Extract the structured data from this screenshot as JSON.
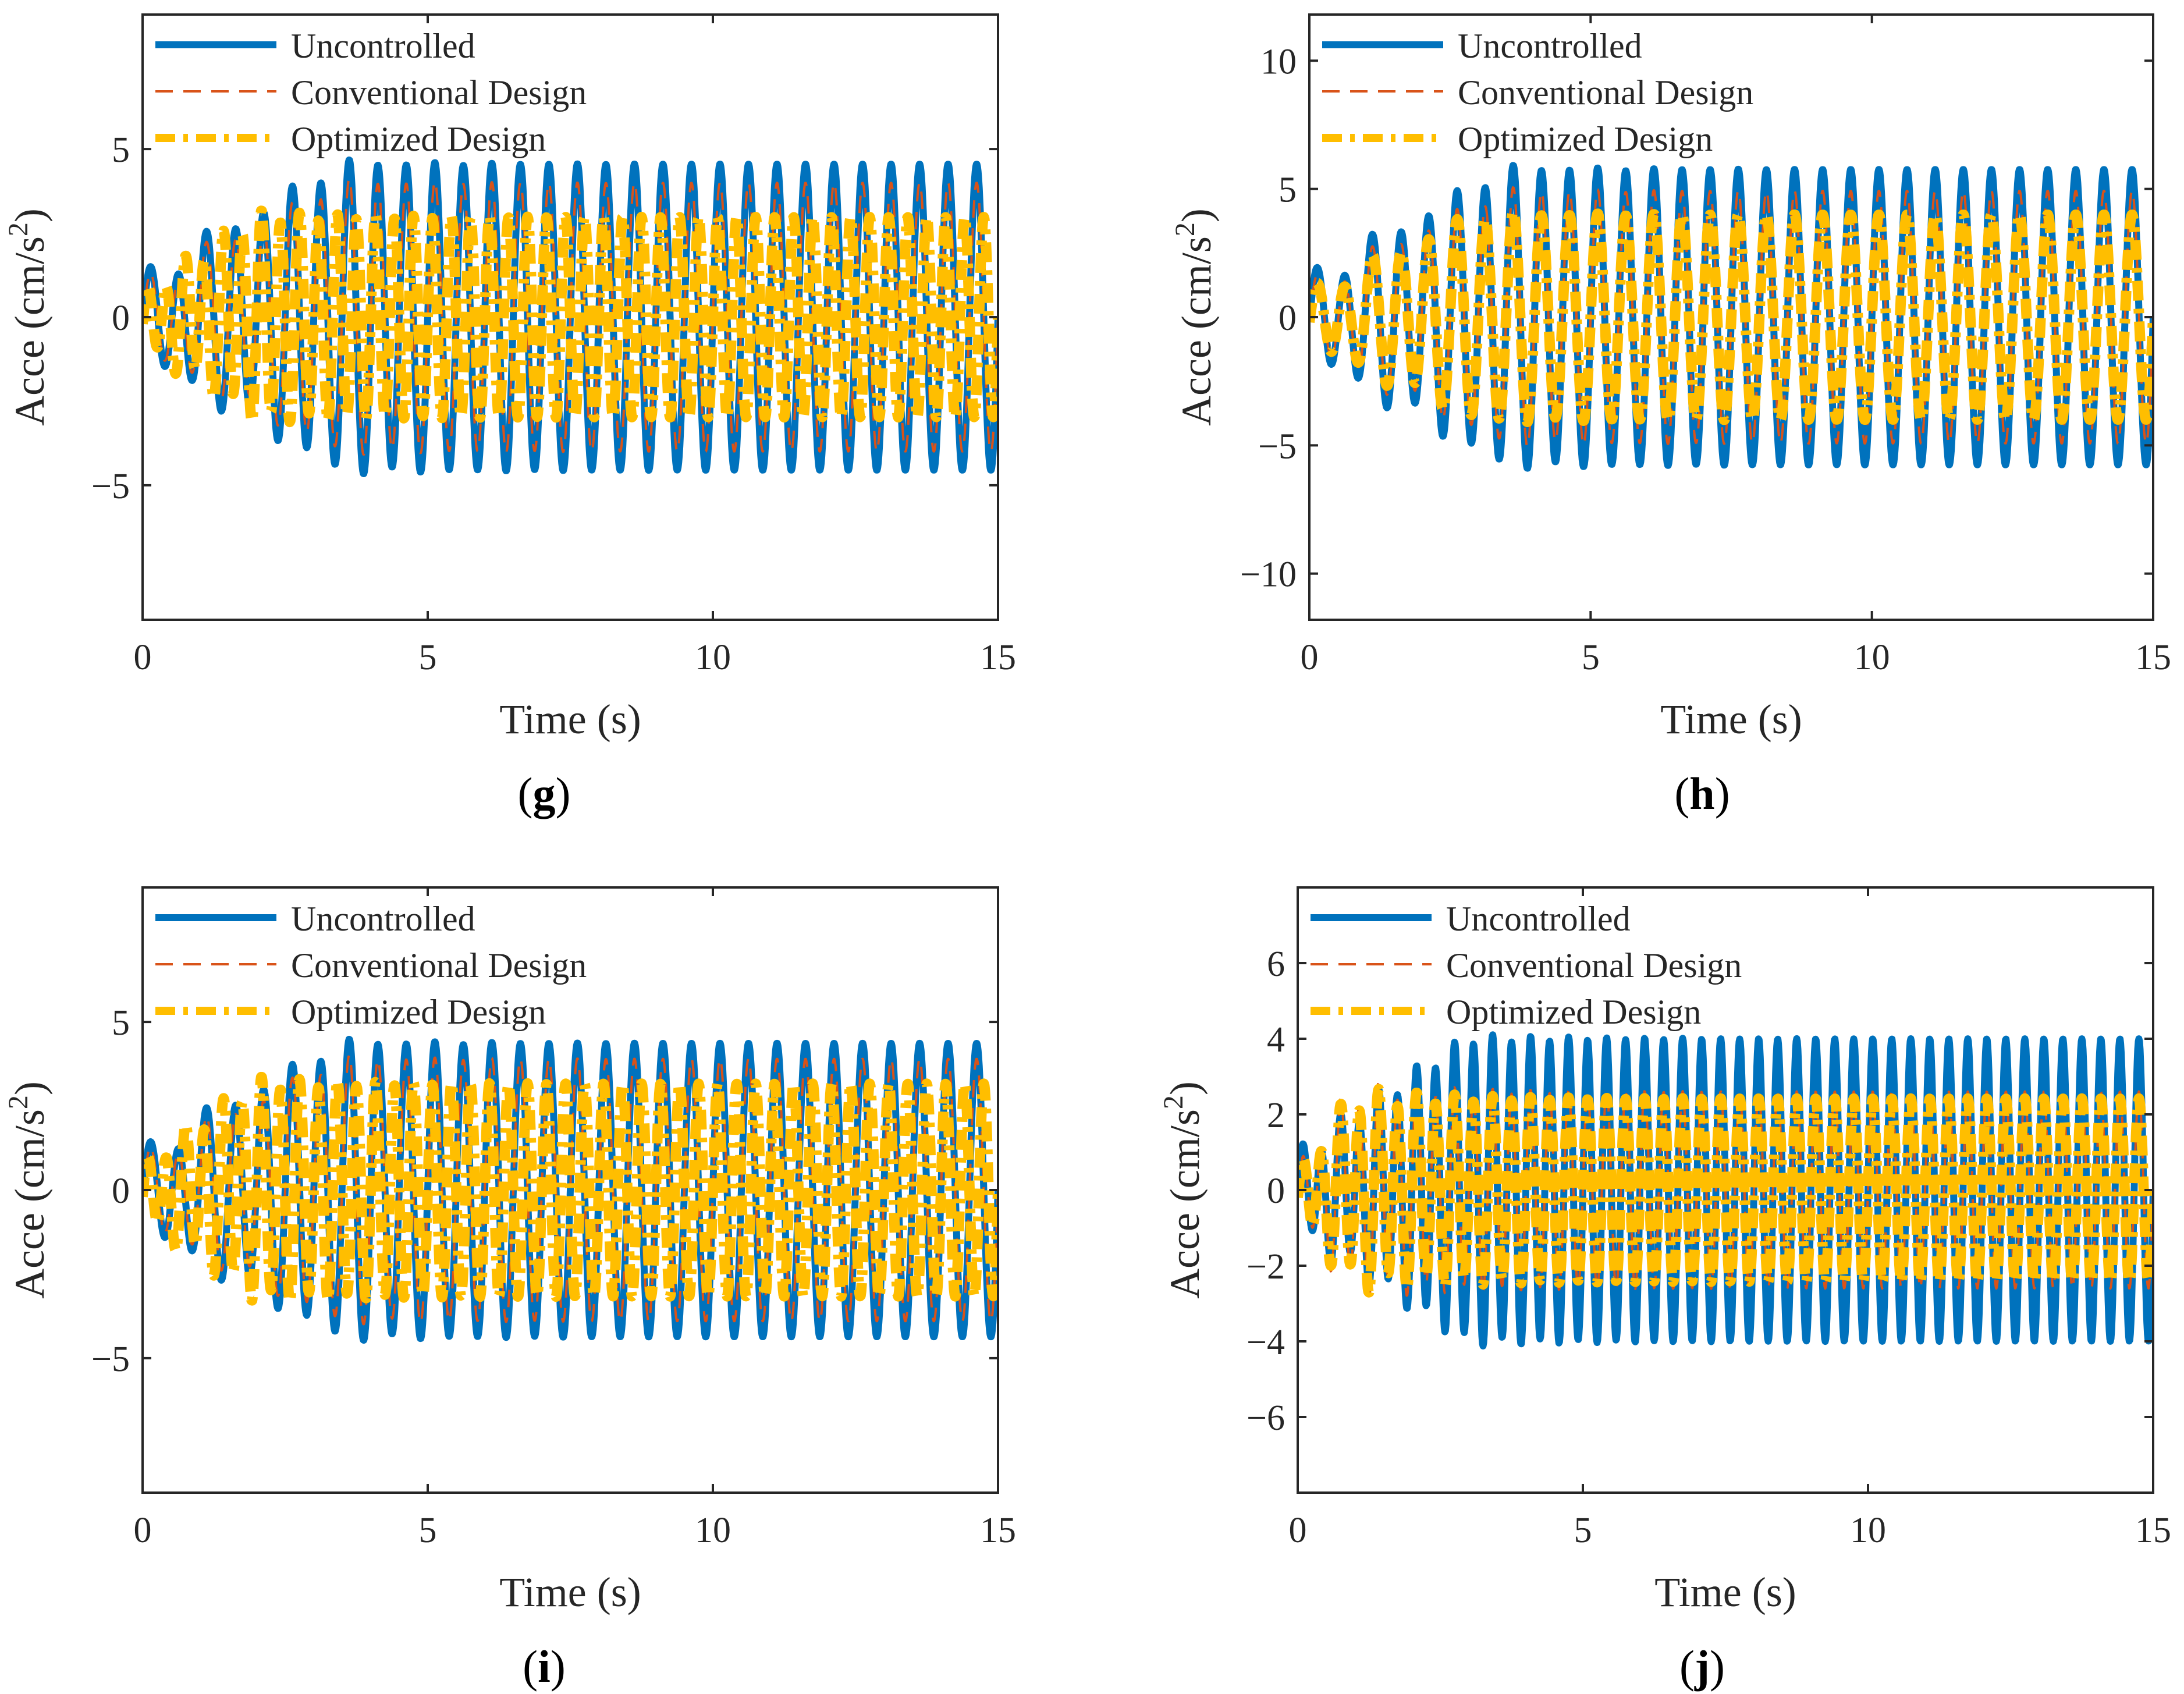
{
  "figure": {
    "legend_entries": [
      "Uncontrolled",
      "Conventional Design",
      "Optimized Design"
    ],
    "colors": {
      "uncontrolled": "#0072BD",
      "conventional": "#D95319",
      "optimized": "#FFBE00",
      "axis": "#262626"
    }
  },
  "chart_data": [
    {
      "panel": "g",
      "caption_letter": "g",
      "type": "line",
      "xlabel": "Time (s)",
      "ylabel_main": "Acce (cm/s",
      "ylabel_sup": "2",
      "ylabel_close": ")",
      "xlim": [
        0,
        15
      ],
      "ylim": [
        -9,
        9
      ],
      "xticks": [
        0,
        5,
        10,
        15
      ],
      "xtick_labels": [
        "0",
        "5",
        "10",
        "15"
      ],
      "yticks": [
        -5,
        0,
        5
      ],
      "ytick_labels": [
        "−5",
        "0",
        "5"
      ],
      "legend_position": "top-left",
      "series": [
        {
          "name": "Uncontrolled",
          "style": "solid",
          "peak": 4.9,
          "freq_hz": 2.0,
          "rise_s": 3.5,
          "beat_hz": 1.2
        },
        {
          "name": "Conventional Design",
          "style": "dashed",
          "peak": 4.3,
          "freq_hz": 2.0,
          "rise_s": 3.5,
          "beat_hz": 1.2
        },
        {
          "name": "Optimized Design",
          "style": "dashdot",
          "peak": 3.2,
          "freq_hz": 3.0,
          "rise_s": 2.0,
          "beat_hz": 1.5
        }
      ]
    },
    {
      "panel": "h",
      "caption_letter": "h",
      "type": "line",
      "xlabel": "Time (s)",
      "ylabel_main": "Acce (cm/s",
      "ylabel_sup": "2",
      "ylabel_close": ")",
      "xlim": [
        0,
        15
      ],
      "ylim": [
        -11.8,
        11.8
      ],
      "xticks": [
        0,
        5,
        10,
        15
      ],
      "xtick_labels": [
        "0",
        "5",
        "10",
        "15"
      ],
      "yticks": [
        -10,
        -5,
        0,
        5,
        10
      ],
      "ytick_labels": [
        "−10",
        "−5",
        "0",
        "5",
        "10"
      ],
      "legend_position": "top-left",
      "series": [
        {
          "name": "Uncontrolled",
          "style": "solid",
          "peak": 6.2,
          "freq_hz": 2.0,
          "rise_s": 3.5,
          "beat_hz": 1.2
        },
        {
          "name": "Conventional Design",
          "style": "dashed",
          "peak": 5.3,
          "freq_hz": 2.0,
          "rise_s": 3.5,
          "beat_hz": 1.2
        },
        {
          "name": "Optimized Design",
          "style": "dashdot",
          "peak": 4.3,
          "freq_hz": 2.0,
          "rise_s": 3.0,
          "beat_hz": 1.2
        }
      ]
    },
    {
      "panel": "i",
      "caption_letter": "i",
      "type": "line",
      "xlabel": "Time (s)",
      "ylabel_main": "Acce (cm/s",
      "ylabel_sup": "2",
      "ylabel_close": ")",
      "xlim": [
        0,
        15
      ],
      "ylim": [
        -9,
        9
      ],
      "xticks": [
        0,
        5,
        10,
        15
      ],
      "xtick_labels": [
        "0",
        "5",
        "10",
        "15"
      ],
      "yticks": [
        -5,
        0,
        5
      ],
      "ytick_labels": [
        "−5",
        "0",
        "5"
      ],
      "legend_position": "top-left",
      "series": [
        {
          "name": "Uncontrolled",
          "style": "solid",
          "peak": 4.7,
          "freq_hz": 2.0,
          "rise_s": 3.5,
          "beat_hz": 1.2
        },
        {
          "name": "Conventional Design",
          "style": "dashed",
          "peak": 4.2,
          "freq_hz": 2.0,
          "rise_s": 3.5,
          "beat_hz": 1.2
        },
        {
          "name": "Optimized Design",
          "style": "dashdot",
          "peak": 3.4,
          "freq_hz": 3.0,
          "rise_s": 2.0,
          "beat_hz": 1.5
        }
      ]
    },
    {
      "panel": "j",
      "caption_letter": "j",
      "type": "line",
      "xlabel": "Time (s)",
      "ylabel_main": "Acce (cm/s",
      "ylabel_sup": "2",
      "ylabel_close": ")",
      "xlim": [
        0,
        15
      ],
      "ylim": [
        -8,
        8
      ],
      "xticks": [
        0,
        5,
        10,
        15
      ],
      "xtick_labels": [
        "0",
        "5",
        "10",
        "15"
      ],
      "yticks": [
        -6,
        -4,
        -2,
        0,
        2,
        4,
        6
      ],
      "ytick_labels": [
        "−6",
        "−4",
        "−2",
        "0",
        "2",
        "4",
        "6"
      ],
      "legend_position": "top-left",
      "series": [
        {
          "name": "Uncontrolled",
          "style": "solid",
          "peak": 4.3,
          "freq_hz": 3.0,
          "rise_s": 3.0,
          "beat_hz": 1.5
        },
        {
          "name": "Conventional Design",
          "style": "dashed",
          "peak": 2.8,
          "freq_hz": 3.0,
          "rise_s": 1.0,
          "beat_hz": 1.5
        },
        {
          "name": "Optimized Design",
          "style": "dashdot",
          "peak": 2.6,
          "freq_hz": 3.0,
          "rise_s": 1.0,
          "beat_hz": 1.5
        }
      ]
    }
  ]
}
